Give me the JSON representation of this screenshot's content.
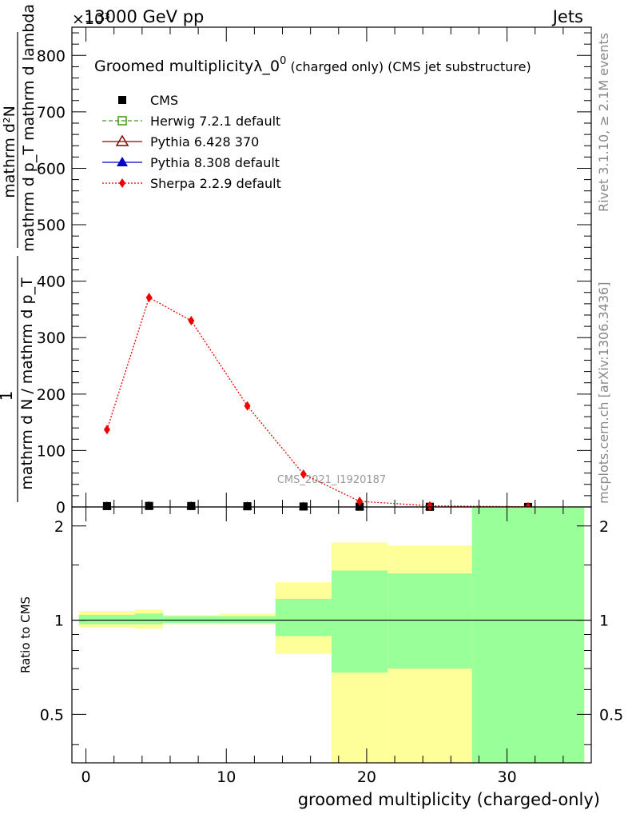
{
  "header": {
    "exponent_label": "×10³",
    "energy_label": "13000 GeV pp",
    "category": "Jets"
  },
  "side_labels": {
    "rivet": "Rivet 3.1.10, ≥ 2.1M events",
    "mcplots": "mcplots.cern.ch [arXiv:1306.3436]"
  },
  "chart_data": [
    {
      "type": "line",
      "title_main": "Groomed multiplicityλ_0",
      "title_sup": "0",
      "title_tail": " (charged only) (CMS jet substructure)",
      "ylabel_numerator": "mathrm d²N",
      "ylabel_denominator": "mathrm d p_T mathrm d lambda",
      "ylabel_prefix_num": "1",
      "ylabel_prefix_den": "mathrm d N / mathrm d p_T",
      "watermark": "CMS_2021_I1920187",
      "xlim": [
        -1,
        36
      ],
      "ylim": [
        0,
        850
      ],
      "yticks": [
        0,
        100,
        200,
        300,
        400,
        500,
        600,
        700,
        800
      ],
      "legend": [
        {
          "name": "CMS",
          "color": "#000000",
          "marker": "square-filled",
          "line": "none"
        },
        {
          "name": "Herwig 7.2.1 default",
          "color": "#3a9a10",
          "marker": "square-open",
          "line": "dashed"
        },
        {
          "name": "Pythia 6.428 370",
          "color": "#8b0000",
          "marker": "triangle-open",
          "line": "solid"
        },
        {
          "name": "Pythia 8.308 default",
          "color": "#0000cc",
          "marker": "triangle-filled",
          "line": "solid"
        },
        {
          "name": "Sherpa 2.2.9 default",
          "color": "#ee0000",
          "marker": "diamond-filled",
          "line": "dotted"
        }
      ],
      "series": [
        {
          "name": "CMS",
          "x": [
            1.5,
            4.5,
            7.5,
            11.5,
            15.5,
            19.5,
            24.5,
            31.5
          ],
          "y": [
            1.5,
            1.8,
            1.6,
            1.2,
            0.8,
            0.5,
            0.3,
            0.1
          ]
        },
        {
          "name": "Sherpa 2.2.9 default",
          "x": [
            1.5,
            4.5,
            7.5,
            11.5,
            15.5,
            19.5,
            24.5,
            31.5
          ],
          "y": [
            137,
            371,
            330,
            179,
            58,
            10,
            2,
            0.3
          ]
        }
      ]
    },
    {
      "type": "area",
      "ylabel": "Ratio to CMS",
      "xlabel": "groomed multiplicity (charged-only)",
      "xlim": [
        -1,
        36
      ],
      "ylim": [
        0.35,
        2.3
      ],
      "log_y": true,
      "yticks": [
        0.5,
        1,
        2
      ],
      "xticks": [
        0,
        10,
        20,
        30
      ],
      "bands": [
        {
          "x0": -0.5,
          "x1": 3.5,
          "yellow": [
            0.95,
            1.07
          ],
          "green": [
            0.97,
            1.04
          ]
        },
        {
          "x0": 3.5,
          "x1": 5.5,
          "yellow": [
            0.94,
            1.08
          ],
          "green": [
            0.97,
            1.05
          ]
        },
        {
          "x0": 5.5,
          "x1": 9.5,
          "yellow": [
            0.97,
            1.04
          ],
          "green": [
            0.98,
            1.03
          ]
        },
        {
          "x0": 9.5,
          "x1": 13.5,
          "yellow": [
            0.97,
            1.05
          ],
          "green": [
            0.98,
            1.03
          ]
        },
        {
          "x0": 13.5,
          "x1": 17.5,
          "yellow": [
            0.78,
            1.32
          ],
          "green": [
            0.89,
            1.17
          ]
        },
        {
          "x0": 17.5,
          "x1": 21.5,
          "yellow": [
            0.35,
            1.77
          ],
          "green": [
            0.68,
            1.44
          ]
        },
        {
          "x0": 21.5,
          "x1": 27.5,
          "yellow": [
            0.35,
            1.73
          ],
          "green": [
            0.7,
            1.41
          ]
        },
        {
          "x0": 27.5,
          "x1": 35.5,
          "yellow": [
            0.35,
            2.3
          ],
          "green": [
            0.35,
            2.3
          ]
        }
      ]
    }
  ]
}
